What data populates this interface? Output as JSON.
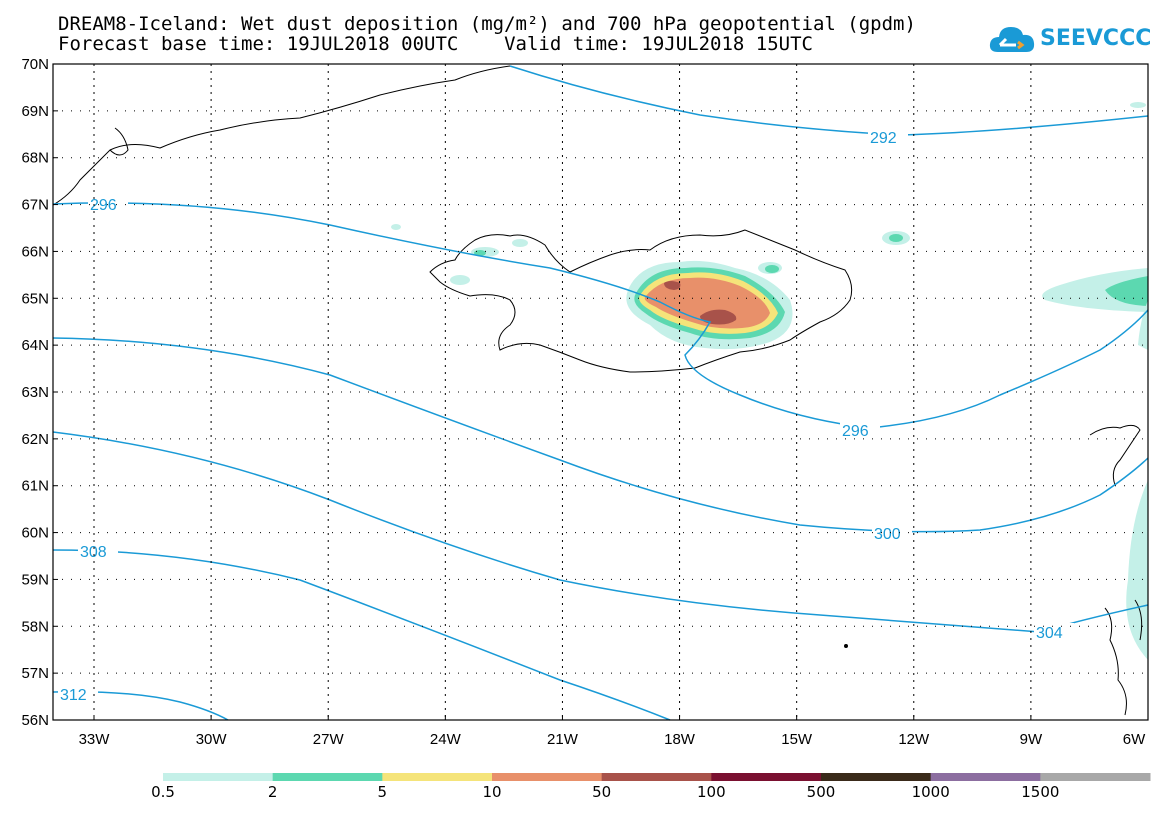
{
  "title": {
    "line1": "DREAM8-Iceland: Wet dust deposition (mg/m²) and 700 hPa geopotential (gpdm)",
    "line2": "Forecast base time: 19JUL2018 00UTC    Valid time: 19JUL2018 15UTC"
  },
  "logo": {
    "text": "SEEVCCC",
    "icon": "cloud-icon"
  },
  "axes": {
    "lat_labels": [
      "70N",
      "69N",
      "68N",
      "67N",
      "66N",
      "65N",
      "64N",
      "63N",
      "62N",
      "61N",
      "60N",
      "59N",
      "58N",
      "57N",
      "56N"
    ],
    "lon_labels": [
      "33W",
      "30W",
      "27W",
      "24W",
      "21W",
      "18W",
      "15W",
      "12W",
      "9W",
      "6W"
    ]
  },
  "contours": [
    {
      "value": "292"
    },
    {
      "value": "296"
    },
    {
      "value": "296"
    },
    {
      "value": "300"
    },
    {
      "value": "304"
    },
    {
      "value": "308"
    },
    {
      "value": "312"
    }
  ],
  "colorbar": {
    "colors": [
      "#c4f0e8",
      "#5cd8b0",
      "#f5e47a",
      "#e8906a",
      "#a8524a",
      "#7a1030",
      "#3a2a1a",
      "#8c6ea0",
      "#a8a8a8"
    ],
    "labels": [
      "0.5",
      "2",
      "5",
      "10",
      "50",
      "100",
      "500",
      "1000",
      "1500"
    ]
  },
  "colors": {
    "contour": "#1a9ad6",
    "logo": "#1a9ad6"
  }
}
